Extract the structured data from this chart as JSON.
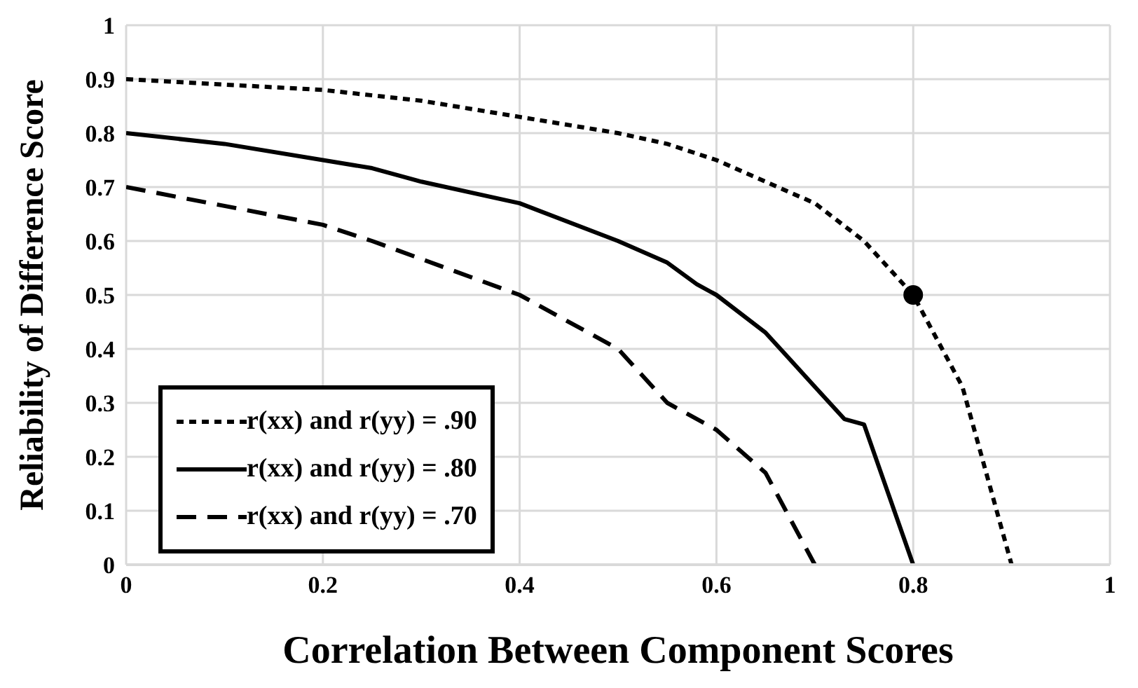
{
  "chart_data": {
    "type": "line",
    "xlabel": "Correlation Between Component Scores",
    "ylabel": "Reliability of Difference Score",
    "xlim": [
      0,
      1
    ],
    "xticks": [
      0,
      0.2,
      0.4,
      0.6,
      0.8,
      1
    ],
    "ylim": [
      0,
      1
    ],
    "yticks": [
      0,
      0.1,
      0.2,
      0.3,
      0.4,
      0.5,
      0.6,
      0.7,
      0.8,
      0.9,
      1
    ],
    "grid": true,
    "legend": "bottom left",
    "marker": "none",
    "series": [
      {
        "name": "r(xx) and r(yy) = .90",
        "color": "#000000",
        "line_style": "dotted",
        "x": [
          0,
          0.2,
          0.3,
          0.4,
          0.5,
          0.55,
          0.6,
          0.7,
          0.75,
          0.8,
          0.85,
          0.9
        ],
        "values": [
          0.9,
          0.88,
          0.86,
          0.83,
          0.8,
          0.78,
          0.75,
          0.67,
          0.6,
          0.5,
          0.33,
          0
        ]
      },
      {
        "name": "r(xx) and r(yy) = .80",
        "color": "#000000",
        "line_style": "solid",
        "x": [
          0,
          0.1,
          0.2,
          0.25,
          0.3,
          0.4,
          0.5,
          0.55,
          0.58,
          0.6,
          0.65,
          0.7,
          0.73,
          0.75,
          0.8
        ],
        "values": [
          0.8,
          0.78,
          0.75,
          0.735,
          0.71,
          0.67,
          0.6,
          0.56,
          0.52,
          0.5,
          0.43,
          0.33,
          0.27,
          0.26,
          0
        ]
      },
      {
        "name": "r(xx) and r(yy) = .70",
        "color": "#000000",
        "line_style": "dashed",
        "x": [
          0,
          0.2,
          0.25,
          0.4,
          0.5,
          0.55,
          0.6,
          0.65,
          0.7
        ],
        "values": [
          0.7,
          0.63,
          0.6,
          0.5,
          0.4,
          0.3,
          0.25,
          0.17,
          0
        ]
      },
      {
        "type": "scatter",
        "color": "#000000",
        "marker": "circle",
        "x": [
          0.8
        ],
        "values": [
          0.5
        ]
      }
    ]
  }
}
